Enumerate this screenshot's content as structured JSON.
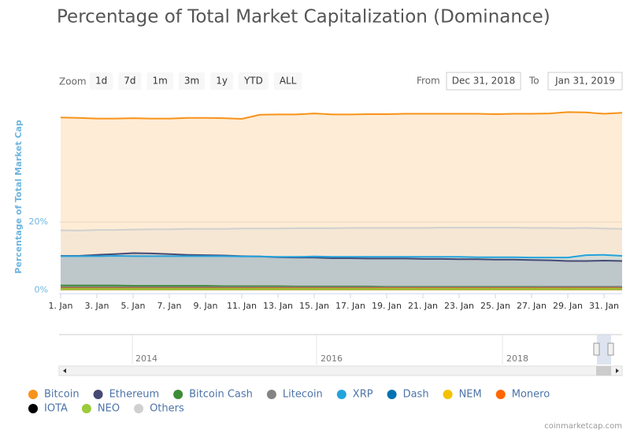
{
  "chart_data": {
    "type": "area",
    "title": "Percentage of Total Market Capitalization (Dominance)",
    "y_axis_title": "Percentage of Total Market Cap",
    "categories": [
      "1. Jan",
      null,
      "3. Jan",
      null,
      "5. Jan",
      null,
      "7. Jan",
      null,
      "9. Jan",
      null,
      "11. Jan",
      null,
      "13. Jan",
      null,
      "15. Jan",
      null,
      "17. Jan",
      null,
      "19. Jan",
      null,
      "21. Jan",
      null,
      "23. Jan",
      null,
      "25. Jan",
      null,
      "27. Jan",
      null,
      "29. Jan",
      null,
      "31. Jan",
      null
    ],
    "ylim": [
      -1,
      54
    ],
    "yticks": [
      {
        "value": 0,
        "label": "0%"
      },
      {
        "value": 20,
        "label": "20%"
      }
    ],
    "grid": true,
    "series": [
      {
        "name": "Bitcoin",
        "color": "#f7931a",
        "values": [
          50.7,
          50.6,
          50.4,
          50.4,
          50.5,
          50.4,
          50.4,
          50.6,
          50.6,
          50.5,
          50.3,
          51.5,
          51.6,
          51.6,
          51.9,
          51.6,
          51.6,
          51.7,
          51.7,
          51.8,
          51.8,
          51.8,
          51.8,
          51.8,
          51.7,
          51.8,
          51.8,
          51.9,
          52.3,
          52.2,
          51.8,
          52.1
        ]
      },
      {
        "name": "Ethereum",
        "color": "#454a75",
        "values": [
          10.1,
          10.1,
          10.4,
          10.6,
          10.9,
          10.8,
          10.6,
          10.4,
          10.3,
          10.2,
          10.0,
          9.9,
          9.7,
          9.6,
          9.6,
          9.4,
          9.4,
          9.3,
          9.3,
          9.3,
          9.2,
          9.2,
          9.1,
          9.1,
          9.0,
          9.0,
          8.9,
          8.8,
          8.6,
          8.6,
          8.7,
          8.6
        ]
      },
      {
        "name": "Bitcoin Cash",
        "color": "#3d8b37",
        "values": [
          1.4,
          1.4,
          1.4,
          1.4,
          1.3,
          1.3,
          1.3,
          1.3,
          1.3,
          1.2,
          1.2,
          1.2,
          1.2,
          1.1,
          1.1,
          1.1,
          1.1,
          1.1,
          1.0,
          1.0,
          1.0,
          1.0,
          1.0,
          1.0,
          1.0,
          1.0,
          1.0,
          1.0,
          1.0,
          1.0,
          1.0,
          1.0
        ]
      },
      {
        "name": "Litecoin",
        "color": "#838383",
        "values": [
          0.9,
          0.9,
          0.9,
          0.9,
          0.9,
          0.9,
          0.9,
          0.9,
          0.9,
          0.9,
          0.9,
          0.9,
          0.9,
          0.9,
          0.9,
          0.9,
          0.9,
          0.9,
          0.9,
          0.9,
          0.9,
          0.9,
          0.9,
          0.9,
          0.9,
          0.9,
          0.9,
          1.0,
          1.0,
          1.0,
          1.0,
          1.0
        ]
      },
      {
        "name": "XRP",
        "color": "#23a3dd",
        "values": [
          10.0,
          10.0,
          10.0,
          10.1,
          10.0,
          10.0,
          10.0,
          10.0,
          10.0,
          10.0,
          9.9,
          9.9,
          9.8,
          9.8,
          9.9,
          9.8,
          9.8,
          9.8,
          9.8,
          9.8,
          9.8,
          9.8,
          9.8,
          9.7,
          9.7,
          9.7,
          9.6,
          9.6,
          9.6,
          10.3,
          10.4,
          10.1
        ]
      },
      {
        "name": "Dash",
        "color": "#0072b2",
        "values": [
          0.6,
          0.6,
          0.6,
          0.6,
          0.6,
          0.6,
          0.6,
          0.6,
          0.6,
          0.6,
          0.6,
          0.5,
          0.5,
          0.5,
          0.5,
          0.5,
          0.5,
          0.5,
          0.5,
          0.5,
          0.5,
          0.5,
          0.5,
          0.5,
          0.5,
          0.5,
          0.5,
          0.5,
          0.5,
          0.5,
          0.5,
          0.5
        ]
      },
      {
        "name": "NEM",
        "color": "#f2c200",
        "values": [
          0.3,
          0.3,
          0.3,
          0.3,
          0.3,
          0.3,
          0.3,
          0.3,
          0.3,
          0.3,
          0.3,
          0.3,
          0.3,
          0.3,
          0.3,
          0.3,
          0.3,
          0.3,
          0.3,
          0.3,
          0.3,
          0.3,
          0.3,
          0.3,
          0.3,
          0.3,
          0.3,
          0.3,
          0.3,
          0.3,
          0.3,
          0.3
        ]
      },
      {
        "name": "Monero",
        "color": "#ff6600",
        "values": [
          0.6,
          0.6,
          0.6,
          0.6,
          0.6,
          0.6,
          0.6,
          0.6,
          0.6,
          0.6,
          0.6,
          0.6,
          0.6,
          0.6,
          0.6,
          0.6,
          0.6,
          0.6,
          0.6,
          0.6,
          0.6,
          0.6,
          0.6,
          0.6,
          0.6,
          0.6,
          0.6,
          0.6,
          0.6,
          0.6,
          0.6,
          0.6
        ]
      },
      {
        "name": "IOTA",
        "color": "#000000",
        "values": [
          0.4,
          0.4,
          0.4,
          0.4,
          0.4,
          0.4,
          0.4,
          0.4,
          0.4,
          0.4,
          0.4,
          0.4,
          0.4,
          0.4,
          0.4,
          0.4,
          0.4,
          0.4,
          0.4,
          0.4,
          0.4,
          0.4,
          0.4,
          0.4,
          0.4,
          0.4,
          0.4,
          0.4,
          0.4,
          0.4,
          0.4,
          0.4
        ]
      },
      {
        "name": "NEO",
        "color": "#9bcb3b",
        "values": [
          0.4,
          0.4,
          0.4,
          0.4,
          0.4,
          0.4,
          0.4,
          0.4,
          0.4,
          0.4,
          0.4,
          0.4,
          0.4,
          0.4,
          0.4,
          0.4,
          0.4,
          0.4,
          0.4,
          0.4,
          0.4,
          0.4,
          0.4,
          0.4,
          0.4,
          0.4,
          0.4,
          0.4,
          0.4,
          0.4,
          0.4,
          0.4
        ]
      },
      {
        "name": "Others",
        "color": "#d0d0d0",
        "values": [
          17.6,
          17.5,
          17.7,
          17.7,
          17.8,
          17.9,
          17.9,
          18.0,
          18.0,
          18.0,
          18.1,
          18.1,
          18.1,
          18.2,
          18.2,
          18.2,
          18.3,
          18.3,
          18.3,
          18.3,
          18.3,
          18.4,
          18.4,
          18.4,
          18.4,
          18.4,
          18.3,
          18.3,
          18.2,
          18.3,
          18.1,
          18.0
        ]
      }
    ]
  },
  "controls": {
    "zoom_label": "Zoom",
    "zoom_buttons": [
      "1d",
      "7d",
      "1m",
      "3m",
      "1y",
      "YTD",
      "ALL"
    ],
    "from_label": "From",
    "from_value": "Dec 31, 2018",
    "to_label": "To",
    "to_value": "Jan 31, 2019",
    "navigator_labels": [
      "2014",
      "2016",
      "2018"
    ],
    "credit": "coinmarketcap.com"
  }
}
